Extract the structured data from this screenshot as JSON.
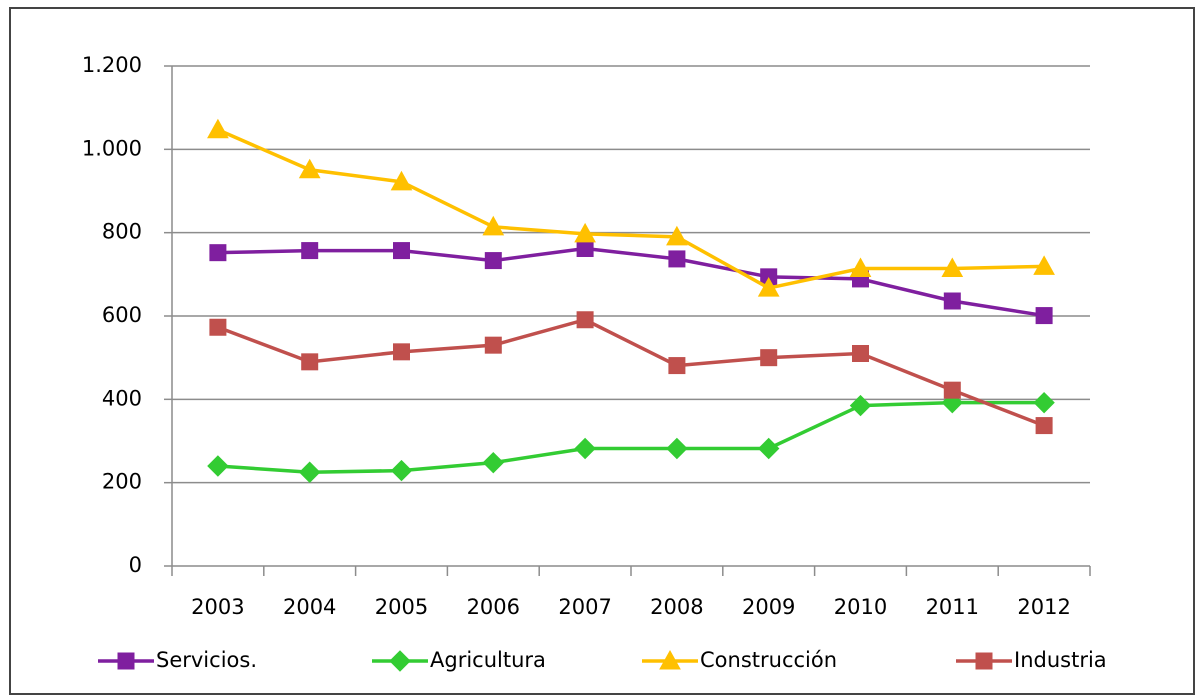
{
  "chart_data": {
    "type": "line",
    "categories": [
      "2003",
      "2004",
      "2005",
      "2006",
      "2007",
      "2008",
      "2009",
      "2010",
      "2011",
      "2012"
    ],
    "series": [
      {
        "name": "Servicios.",
        "color": "#7f1f9f",
        "marker": "square",
        "values": [
          752,
          757,
          757,
          733,
          762,
          737,
          694,
          689,
          636,
          601
        ]
      },
      {
        "name": "Agricultura",
        "color": "#33cc33",
        "marker": "diamond",
        "values": [
          240,
          225,
          229,
          248,
          282,
          282,
          282,
          385,
          392,
          392
        ]
      },
      {
        "name": "Construcción",
        "color": "#ffc000",
        "marker": "triangle",
        "values": [
          1047,
          951,
          922,
          814,
          797,
          790,
          667,
          714,
          714,
          719
        ]
      },
      {
        "name": "Industria",
        "color": "#c0504d",
        "marker": "square",
        "values": [
          573,
          490,
          514,
          530,
          591,
          481,
          500,
          510,
          422,
          337
        ]
      }
    ],
    "ylim": [
      0,
      1200
    ],
    "yticks": [
      0,
      200,
      400,
      600,
      800,
      {
        "value": 1000,
        "label": "1.000"
      },
      {
        "value": 1200,
        "label": "1.200"
      }
    ],
    "grid": true,
    "legend": "bottom"
  }
}
